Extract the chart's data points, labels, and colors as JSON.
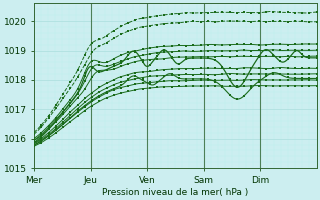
{
  "xlabel": "Pression niveau de la mer( hPa )",
  "bg_color": "#cceef0",
  "grid_major_color": "#aadddd",
  "grid_minor_color": "#bbeeee",
  "line_color": "#1a6b1a",
  "ylim": [
    1015.0,
    1020.6
  ],
  "ytick_values": [
    1015,
    1016,
    1017,
    1018,
    1019,
    1020
  ],
  "xtick_labels": [
    "Mer",
    "Jeu",
    "Ven",
    "Sam",
    "Dim"
  ],
  "n_days": 5,
  "n_pts": 200
}
